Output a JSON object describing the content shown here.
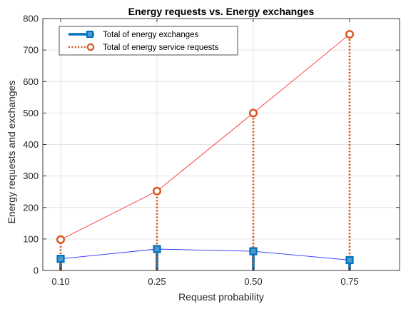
{
  "chart_data": {
    "type": "line",
    "title": "Energy requests vs. Energy exchanges",
    "xlabel": "Request probability",
    "ylabel": "Energy requests and exchanges",
    "categories": [
      "0.10",
      "0.25",
      "0.50",
      "0.75"
    ],
    "ylim": [
      0,
      800
    ],
    "yticks": [
      0,
      100,
      200,
      300,
      400,
      500,
      600,
      700,
      800
    ],
    "grid": true,
    "legend_position": "top-left",
    "series": [
      {
        "name": "Total of energy exchanges",
        "values": [
          37,
          68,
          61,
          33
        ],
        "color": "#0072bd",
        "stem_style": "solid",
        "marker": "square",
        "connector_color": "#2b2bff"
      },
      {
        "name": "Total of energy service requests",
        "values": [
          98,
          252,
          500,
          750
        ],
        "color": "#d95319",
        "stem_style": "dotted",
        "marker": "circle",
        "connector_color": "#ff3333"
      }
    ]
  }
}
